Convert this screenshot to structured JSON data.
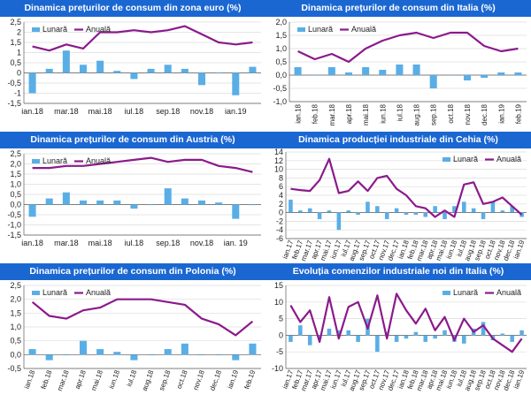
{
  "chart_data": [
    {
      "type": "bar+line",
      "title": "Dinamica prețurilor de consum din zona euro (%)",
      "legend": {
        "monthly": "Lunară",
        "annual": "Anuală",
        "position": "top-left"
      },
      "categories": [
        "ian.18",
        "feb.18",
        "mar.18",
        "apr.18",
        "mai.18",
        "iun.18",
        "iul.18",
        "aug.18",
        "sep.18",
        "oct.18",
        "nov.18",
        "dec.18",
        "ian.19",
        "feb.19"
      ],
      "tick_labels": [
        "ian.18",
        "mar.18",
        "mai.18",
        "iul.18",
        "sep.18",
        "nov.18",
        "ian.19"
      ],
      "label_rotation": 0,
      "ylim": [
        -1.5,
        2.5
      ],
      "yticks": [
        -1.5,
        -1,
        -0.5,
        0,
        0.5,
        1,
        1.5,
        2,
        2.5
      ],
      "ytick_labels": [
        "-1,5",
        "-1",
        "-0,5",
        "0",
        "0,5",
        "1",
        "1,5",
        "2",
        "2,5"
      ],
      "series": [
        {
          "name": "Lunară",
          "kind": "bar",
          "values": [
            -1.0,
            0.2,
            1.1,
            0.4,
            0.6,
            0.1,
            -0.3,
            0.2,
            0.4,
            0.2,
            -0.6,
            0.0,
            -1.1,
            0.3
          ]
        },
        {
          "name": "Anuală",
          "kind": "line",
          "values": [
            1.3,
            1.1,
            1.4,
            1.2,
            2.0,
            2.0,
            2.1,
            2.0,
            2.1,
            2.3,
            1.9,
            1.5,
            1.4,
            1.5
          ]
        }
      ]
    },
    {
      "type": "bar+line",
      "title": "Dinamica prețurilor de consum din Italia (%)",
      "legend": {
        "monthly": "Lunară",
        "annual": "Anuală",
        "position": "top-left"
      },
      "categories": [
        "ian.18",
        "feb.18",
        "mar.18",
        "apr.18",
        "mai.18",
        "iun.18",
        "iul.18",
        "aug.18",
        "sep.18",
        "oct.18",
        "nov.18",
        "dec.18",
        "ian.19",
        "feb.19"
      ],
      "tick_labels": [
        "ian.18",
        "feb.18",
        "mar.18",
        "apr.18",
        "mai.18",
        "iun.18",
        "iul.18",
        "aug.18",
        "sep.18",
        "oct.18",
        "nov.18",
        "dec.18",
        "ian.19",
        "feb.19"
      ],
      "label_rotation": -90,
      "ylim": [
        -1.0,
        2.0
      ],
      "yticks": [
        -1,
        -0.5,
        0,
        0.5,
        1,
        1.5,
        2
      ],
      "ytick_labels": [
        "-1,0",
        "-0,5",
        "0,0",
        "0,5",
        "1,0",
        "1,5",
        "2,0"
      ],
      "series": [
        {
          "name": "Lunară",
          "kind": "bar",
          "values": [
            0.3,
            0.0,
            0.3,
            0.1,
            0.3,
            0.2,
            0.4,
            0.4,
            -0.5,
            0.0,
            -0.2,
            -0.1,
            0.1,
            0.1
          ]
        },
        {
          "name": "Anuală",
          "kind": "line",
          "values": [
            0.9,
            0.6,
            0.8,
            0.5,
            1.0,
            1.3,
            1.5,
            1.6,
            1.4,
            1.6,
            1.6,
            1.1,
            0.9,
            1.0
          ]
        }
      ]
    },
    {
      "type": "bar+line",
      "title": "Dinamica prețurilor de consum din Austria (%)",
      "legend": {
        "monthly": "Lunară",
        "annual": "Anuală",
        "position": "top-left"
      },
      "categories": [
        "ian.18",
        "feb.18",
        "mar.18",
        "apr.18",
        "mai.18",
        "iun.18",
        "iul.18",
        "aug.18",
        "sep.18",
        "oct.18",
        "nov.18",
        "dec.18",
        "ian.19",
        "feb.19"
      ],
      "tick_labels": [
        "ian.18",
        "mar.18",
        "mai.18",
        "iul.18",
        "sep.18",
        "nov.18",
        "ian. 19"
      ],
      "label_rotation": 0,
      "ylim": [
        -1.5,
        2.5
      ],
      "yticks": [
        -1.5,
        -1,
        -0.5,
        0,
        0.5,
        1,
        1.5,
        2,
        2.5
      ],
      "ytick_labels": [
        "-1,5",
        "-1,0",
        "-0,5",
        "0,0",
        "0,5",
        "1,0",
        "1,5",
        "2,0",
        "2,5"
      ],
      "series": [
        {
          "name": "Lunară",
          "kind": "bar",
          "values": [
            -0.6,
            0.3,
            0.6,
            0.2,
            0.2,
            0.2,
            -0.2,
            0.0,
            0.8,
            0.3,
            0.2,
            0.1,
            -0.7,
            0.0
          ]
        },
        {
          "name": "Anuală",
          "kind": "line",
          "values": [
            1.8,
            1.8,
            1.9,
            1.9,
            2.0,
            2.1,
            2.2,
            2.3,
            2.1,
            2.2,
            2.2,
            1.9,
            1.8,
            1.6
          ]
        }
      ]
    },
    {
      "type": "bar+line",
      "title": "Dinamica producției industriale din Cehia (%)",
      "legend": {
        "monthly": "Lunară",
        "annual": "Anuală",
        "position": "top-right"
      },
      "categories": [
        "ian.17",
        "feb.17",
        "mar.17",
        "apr.17",
        "mai.17",
        "iun.17",
        "iul.17",
        "aug.17",
        "sep.17",
        "oct.17",
        "nov.17",
        "dec.17",
        "ian.18",
        "feb.18",
        "mar.18",
        "apr.18",
        "mai.18",
        "iun.18",
        "iul.18",
        "aug.18",
        "sep.18",
        "oct.18",
        "nov.18",
        "dec.18",
        "ian.19"
      ],
      "tick_labels": [
        "ian.17",
        "feb.17",
        "mar.17",
        "apr.17",
        "mai.17",
        "iun.17",
        "iul.17",
        "aug.17",
        "sep.17",
        "oct.17",
        "nov.17",
        "dec.17",
        "ian.18",
        "feb.18",
        "mar.18",
        "apr.18",
        "mai.18",
        "iun.18",
        "iul.18",
        "aug.18",
        "sep.18",
        "oct.18",
        "nov.18",
        "dec.18",
        "ian.19"
      ],
      "label_rotation": -70,
      "ylim": [
        -6,
        14
      ],
      "yticks": [
        -6,
        -4,
        -2,
        0,
        2,
        4,
        6,
        8,
        10,
        12,
        14
      ],
      "ytick_labels": [
        "-6",
        "-4",
        "-2",
        "0",
        "2",
        "4",
        "6",
        "8",
        "10",
        "12",
        "14"
      ],
      "series": [
        {
          "name": "Lunară",
          "kind": "bar",
          "values": [
            3.0,
            0.5,
            1.0,
            -1.5,
            0.5,
            -4.0,
            0.5,
            -0.5,
            2.5,
            1.5,
            -1.5,
            1.0,
            -0.5,
            -0.5,
            -1.0,
            1.5,
            -1.5,
            1.5,
            2.5,
            1.0,
            -1.5,
            2.5,
            0.5,
            1.5,
            -1.0
          ]
        },
        {
          "name": "Anuală",
          "kind": "line",
          "values": [
            5.5,
            5.2,
            5.0,
            7.5,
            12.4,
            4.5,
            5.0,
            7.2,
            5.0,
            8.0,
            8.5,
            5.5,
            4.0,
            1.5,
            1.0,
            -1.0,
            0.5,
            -1.0,
            6.5,
            7.0,
            2.0,
            2.5,
            3.5,
            1.5,
            -0.5
          ]
        }
      ]
    },
    {
      "type": "bar+line",
      "title": "Dinamica prețurilor de consum din Polonia (%)",
      "legend": {
        "monthly": "Lunară",
        "annual": "Anuală",
        "position": "top-left"
      },
      "categories": [
        "ian.18",
        "feb.18",
        "mar.18",
        "apr.18",
        "mai.18",
        "iun.18",
        "iul.18",
        "aug.18",
        "sep.18",
        "oct.18",
        "nov.18",
        "dec.18",
        "ian.19",
        "feb.19"
      ],
      "tick_labels": [
        "ian.18",
        "feb.18",
        "mar.18",
        "apr.18",
        "mai.18",
        "iun.18",
        "iul.18",
        "aug.18",
        "sep.18",
        "oct.18",
        "nov.18",
        "dec.18",
        "ian.19",
        "feb.19"
      ],
      "label_rotation": -70,
      "ylim": [
        -0.5,
        2.5
      ],
      "yticks": [
        -0.5,
        0,
        0.5,
        1,
        1.5,
        2,
        2.5
      ],
      "ytick_labels": [
        "-0,5",
        "0,0",
        "0,5",
        "1,0",
        "1,5",
        "2,0",
        "2,5"
      ],
      "series": [
        {
          "name": "Lunară",
          "kind": "bar",
          "values": [
            0.2,
            -0.2,
            0.0,
            0.5,
            0.2,
            0.1,
            -0.2,
            0.0,
            0.2,
            0.4,
            0.0,
            0.0,
            -0.2,
            0.4
          ]
        },
        {
          "name": "Anuală",
          "kind": "line",
          "values": [
            1.9,
            1.4,
            1.3,
            1.6,
            1.7,
            2.0,
            2.0,
            2.0,
            1.9,
            1.8,
            1.3,
            1.1,
            0.7,
            1.2
          ]
        }
      ]
    },
    {
      "type": "bar+line",
      "title": "Evoluția comenzilor industriale noi din Italia (%)",
      "legend": {
        "monthly": "Lunară",
        "annual": "Anuală",
        "position": "top-right"
      },
      "categories": [
        "ian.17",
        "feb.17",
        "mar.17",
        "apr.17",
        "mai.17",
        "iun.17",
        "iul.17",
        "aug.17",
        "sep.17",
        "oct.17",
        "nov.17",
        "dec.17",
        "ian.18",
        "feb.18",
        "mar.18",
        "apr.18",
        "mai.18",
        "iun.18",
        "iul.18",
        "aug.18",
        "sep.18",
        "oct.18",
        "nov.18",
        "dec.18",
        "ian.19"
      ],
      "tick_labels": [
        "ian.17",
        "feb.17",
        "mar.17",
        "apr.17",
        "mai.17",
        "iun.17",
        "iul.17",
        "aug.17",
        "sep.17",
        "oct.17",
        "nov.17",
        "dec.17",
        "ian.18",
        "feb.18",
        "mar.18",
        "apr.18",
        "mai.18",
        "iun.18",
        "iul.18",
        "aug.18",
        "sep.18",
        "oct.18",
        "nov.18",
        "dec.18",
        "ian.19"
      ],
      "label_rotation": -70,
      "ylim": [
        -10,
        15
      ],
      "yticks": [
        -10,
        -5,
        0,
        5,
        10,
        15
      ],
      "ytick_labels": [
        "-10",
        "-5",
        "0",
        "5",
        "10",
        "15"
      ],
      "series": [
        {
          "name": "Lunară",
          "kind": "bar",
          "values": [
            -2.0,
            3.0,
            -3.0,
            -1.0,
            2.0,
            1.5,
            1.5,
            -2.0,
            5.0,
            -5.0,
            1.0,
            -2.0,
            -1.0,
            1.0,
            -2.0,
            -1.0,
            1.5,
            -2.0,
            -2.5,
            2.0,
            4.0,
            -1.5,
            0.5,
            -2.0,
            1.5
          ]
        },
        {
          "name": "Anuală",
          "kind": "line",
          "values": [
            9.0,
            4.0,
            7.5,
            -2.0,
            11.5,
            -1.0,
            8.5,
            10.0,
            2.0,
            12.0,
            -1.0,
            12.5,
            7.5,
            3.5,
            8.0,
            1.5,
            5.5,
            -1.5,
            5.0,
            1.0,
            3.0,
            -1.0,
            -3.0,
            -5.0,
            -1.0
          ]
        }
      ]
    }
  ],
  "colors": {
    "title_bg": "#1b67d2",
    "title_text": "#ffffff",
    "bar": "#5aaee6",
    "line": "#8b1a8b",
    "grid": "#dcdcdc",
    "frame": "#5a5a5a"
  }
}
